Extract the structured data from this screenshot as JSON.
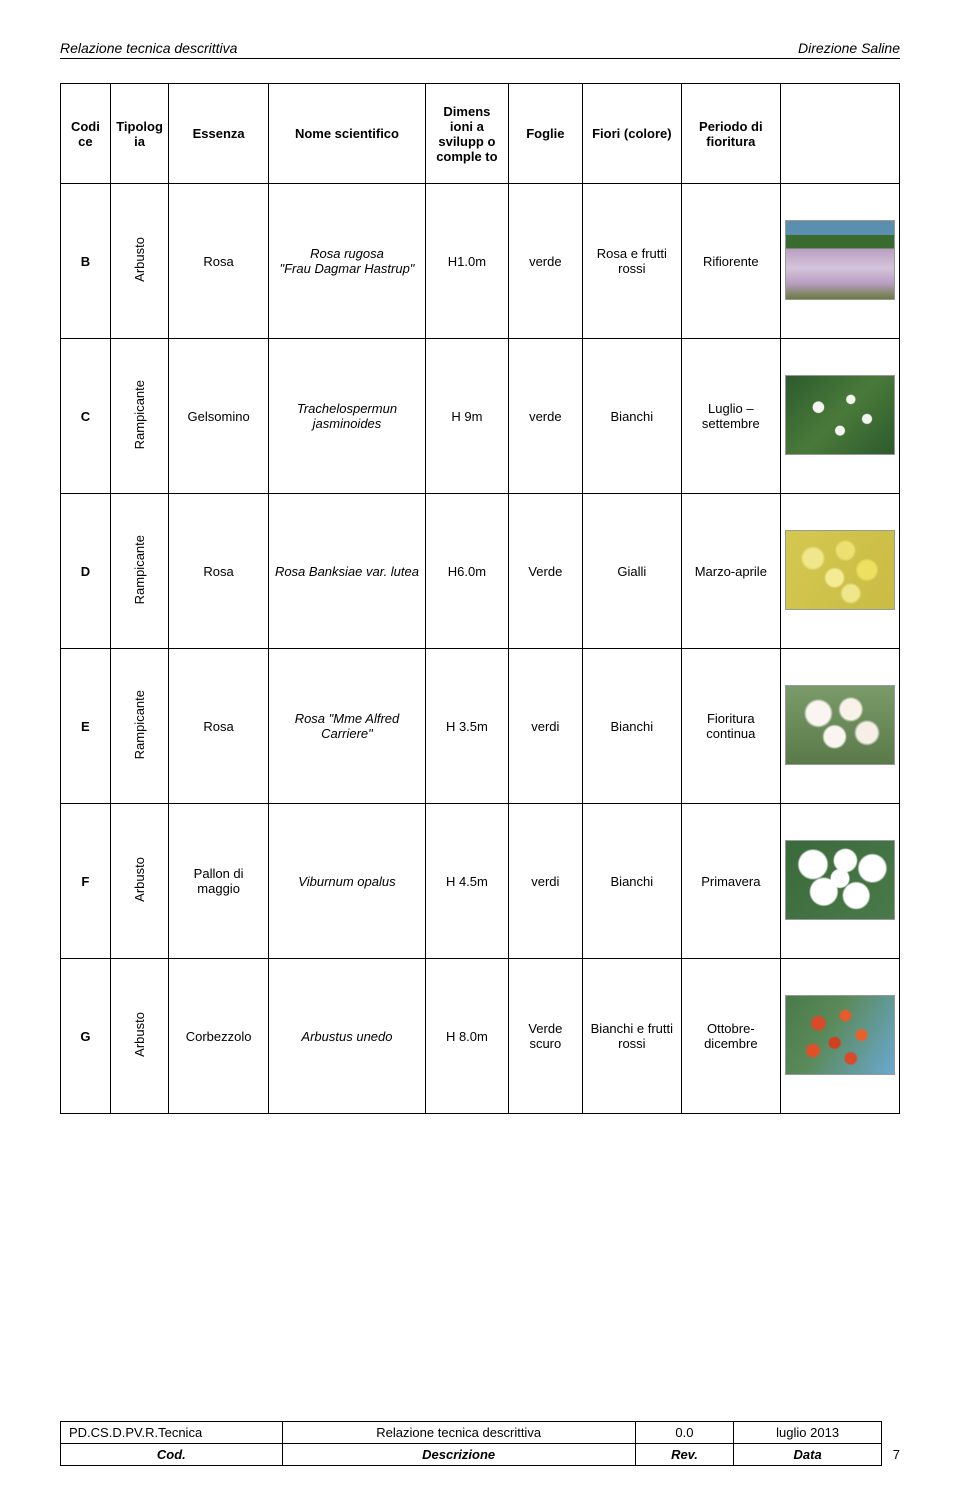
{
  "header": {
    "left": "Relazione tecnica descrittiva",
    "right": "Direzione Saline"
  },
  "columns": {
    "c0": "Codi ce",
    "c1": "Tipolog ia",
    "c2": "Essenza",
    "c3": "Nome scientifico",
    "c4": "Dimens ioni a svilupp o comple to",
    "c5": "Foglie",
    "c6": "Fiori (colore)",
    "c7": "Periodo di fioritura",
    "c8": ""
  },
  "rows": [
    {
      "code": "B",
      "tip": "Arbusto",
      "ess": "Rosa",
      "sci_prefix": "Rosa rugosa",
      "sci_quoted": "\"Frau Dagmar Hastrup\"",
      "dim": "H1.0m",
      "foglie": "verde",
      "fiori": "Rosa e frutti rossi",
      "periodo": "Rifiorente",
      "img_bg": "linear-gradient(to bottom, #5a8fb0 0%, #5a8fb0 18%, #3a6b2e 18%, #3a6b2e 35%, #b89ec2 35%, #d4c4da 60%, #b89ec2 80%, #6a7a3e 100%)"
    },
    {
      "code": "C",
      "tip": "Rampicante",
      "ess": "Gelsomino",
      "sci_prefix": "Trachelospermun jasminoides",
      "sci_quoted": "",
      "dim": "H 9m",
      "foglie": "verde",
      "fiori": "Bianchi",
      "periodo": "Luglio – settembre",
      "img_bg": "radial-gradient(circle at 30% 40%, #f5f5f0 6%, transparent 7%), radial-gradient(circle at 60% 30%, #f5f5f0 5%, transparent 6%), radial-gradient(circle at 50% 70%, #f5f5f0 6%, transparent 7%), radial-gradient(circle at 75% 55%, #f5f5f0 5%, transparent 6%), linear-gradient(135deg, #2d5a2d, #4a7a3a, #2d5a2d)"
    },
    {
      "code": "D",
      "tip": "Rampicante",
      "ess": "Rosa",
      "sci_prefix": "Rosa Banksiae var. lutea",
      "sci_quoted": "",
      "dim": "H6.0m",
      "foglie": "Verde",
      "fiori": "Gialli",
      "periodo": "Marzo-aprile",
      "img_bg": "radial-gradient(circle at 25% 35%, #f0e68c 10%, transparent 13%), radial-gradient(circle at 55% 25%, #eee070 10%, transparent 13%), radial-gradient(circle at 45% 60%, #f5eb95 11%, transparent 14%), radial-gradient(circle at 75% 50%, #ede060 10%, transparent 13%), radial-gradient(circle at 60% 80%, #f0e68c 9%, transparent 12%), linear-gradient(120deg, #d4c850, #c8bc45)"
    },
    {
      "code": "E",
      "tip": "Rampicante",
      "ess": "Rosa",
      "sci_prefix": "",
      "sci_quoted": "Rosa \"Mme Alfred Carriere\"",
      "dim": "H 3.5m",
      "foglie": "verdi",
      "fiori": "Bianchi",
      "periodo": "Fioritura continua",
      "img_bg": "radial-gradient(circle at 30% 35%, #faf5f0 13%, transparent 16%), radial-gradient(circle at 60% 30%, #f8f2e8 12%, transparent 15%), radial-gradient(circle at 45% 65%, #faf5f0 13%, transparent 16%), radial-gradient(circle at 75% 60%, #f5efe5 11%, transparent 14%), linear-gradient(to bottom, #7a9a6a, #5a7a4a)"
    },
    {
      "code": "F",
      "tip": "Arbusto",
      "ess": "Pallon di maggio",
      "sci_prefix": "Viburnum opalus",
      "sci_quoted": "",
      "dim": "H 4.5m",
      "foglie": "verdi",
      "fiori": "Bianchi",
      "periodo": "Primavera",
      "img_bg": "radial-gradient(circle at 25% 30%, #ffffff 14%, transparent 16%), radial-gradient(circle at 55% 25%, #ffffff 13%, transparent 15%), radial-gradient(circle at 80% 35%, #ffffff 13%, transparent 15%), radial-gradient(circle at 35% 65%, #ffffff 15%, transparent 17%), radial-gradient(circle at 65% 70%, #ffffff 14%, transparent 16%), radial-gradient(circle at 50% 48%, #ffffff 13%, transparent 15%), linear-gradient(135deg, #3a6a3a, #4a7a4a)"
    },
    {
      "code": "G",
      "tip": "Arbusto",
      "ess": "Corbezzolo",
      "sci_prefix": "Arbustus unedo",
      "sci_quoted": "",
      "dim": "H 8.0m",
      "foglie": "Verde scuro",
      "fiori": "Bianchi e frutti rossi",
      "periodo": "Ottobre-dicembre",
      "img_bg": "radial-gradient(circle at 30% 35%, #d84a2a 7%, transparent 9%), radial-gradient(circle at 55% 25%, #e85a2a 6%, transparent 8%), radial-gradient(circle at 45% 60%, #d04020 7%, transparent 9%), radial-gradient(circle at 70% 50%, #e8602a 6%, transparent 8%), radial-gradient(circle at 60% 80%, #d84a2a 6%, transparent 8%), radial-gradient(circle at 25% 70%, #e05028 6%, transparent 8%), linear-gradient(120deg, #4a7a4a 0%, #5a8a5a 40%, #6aa8d0 100%)"
    }
  ],
  "col_widths": [
    "6%",
    "7%",
    "12%",
    "19%",
    "10%",
    "9%",
    "12%",
    "12%",
    "13%"
  ],
  "footer": {
    "r1c1": "PD.CS.D.PV.R.Tecnica",
    "r1c2": "Relazione tecnica descrittiva",
    "r1c3": "0.0",
    "r1c4": "luglio 2013",
    "r2c1": "Cod.",
    "r2c2": "Descrizione",
    "r2c3": "Rev.",
    "r2c4": "Data",
    "page": "7"
  }
}
